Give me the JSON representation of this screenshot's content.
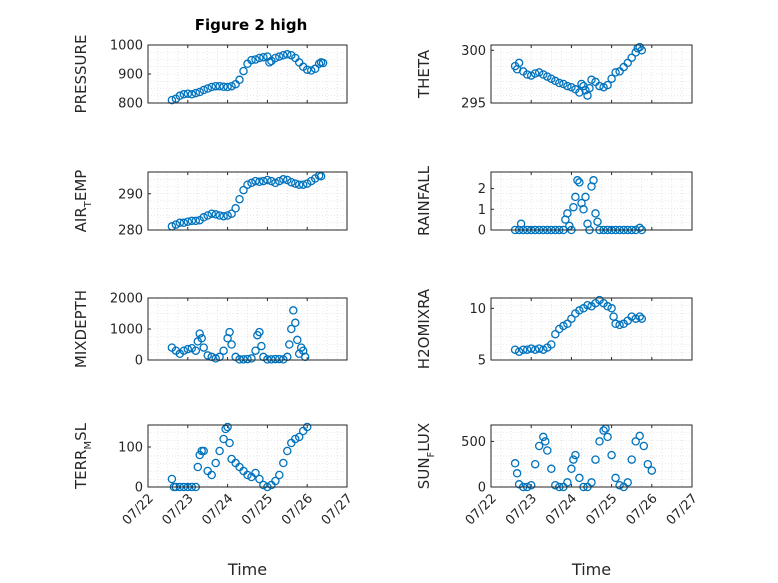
{
  "figure_title": "Figure 2 high",
  "colors": {
    "marker": "#0072BD",
    "axis": "#262626",
    "grid": "#d6d6d6"
  },
  "chart_data": [
    {
      "id": "pressure",
      "type": "scatter",
      "title": "Figure 2 high",
      "ylabel": {
        "main": "PRESSURE",
        "sub": "",
        "rest": ""
      },
      "xlabel": "",
      "xlim": [
        0,
        5
      ],
      "ylim": [
        800,
        1000
      ],
      "yticks": [
        800,
        900,
        1000
      ],
      "xticks": [],
      "grid": true,
      "points": [
        [
          0.6,
          810
        ],
        [
          0.7,
          815
        ],
        [
          0.8,
          825
        ],
        [
          0.9,
          830
        ],
        [
          1.0,
          832
        ],
        [
          1.1,
          830
        ],
        [
          1.2,
          834
        ],
        [
          1.3,
          838
        ],
        [
          1.4,
          845
        ],
        [
          1.5,
          850
        ],
        [
          1.6,
          855
        ],
        [
          1.7,
          858
        ],
        [
          1.8,
          858
        ],
        [
          1.9,
          856
        ],
        [
          2.0,
          855
        ],
        [
          2.1,
          858
        ],
        [
          2.2,
          865
        ],
        [
          2.3,
          880
        ],
        [
          2.4,
          910
        ],
        [
          2.5,
          935
        ],
        [
          2.6,
          948
        ],
        [
          2.7,
          950
        ],
        [
          2.8,
          955
        ],
        [
          2.9,
          958
        ],
        [
          3.0,
          960
        ],
        [
          3.05,
          940
        ],
        [
          3.1,
          945
        ],
        [
          3.2,
          955
        ],
        [
          3.3,
          960
        ],
        [
          3.4,
          965
        ],
        [
          3.5,
          968
        ],
        [
          3.6,
          965
        ],
        [
          3.7,
          955
        ],
        [
          3.8,
          940
        ],
        [
          3.9,
          925
        ],
        [
          4.0,
          915
        ],
        [
          4.1,
          912
        ],
        [
          4.2,
          918
        ],
        [
          4.3,
          935
        ],
        [
          4.35,
          940
        ],
        [
          4.4,
          938
        ]
      ]
    },
    {
      "id": "theta",
      "type": "scatter",
      "ylabel": {
        "main": "THETA",
        "sub": "",
        "rest": ""
      },
      "xlabel": "",
      "xlim": [
        0,
        5
      ],
      "ylim": [
        295,
        300.5
      ],
      "yticks": [
        295,
        300
      ],
      "xticks": [],
      "grid": true,
      "points": [
        [
          0.6,
          298.5
        ],
        [
          0.65,
          298.2
        ],
        [
          0.7,
          298.8
        ],
        [
          0.8,
          298.0
        ],
        [
          0.9,
          297.7
        ],
        [
          1.0,
          297.6
        ],
        [
          1.1,
          297.8
        ],
        [
          1.2,
          297.9
        ],
        [
          1.3,
          297.7
        ],
        [
          1.4,
          297.5
        ],
        [
          1.5,
          297.3
        ],
        [
          1.6,
          297.1
        ],
        [
          1.7,
          296.9
        ],
        [
          1.8,
          296.8
        ],
        [
          1.9,
          296.6
        ],
        [
          2.0,
          296.5
        ],
        [
          2.1,
          296.3
        ],
        [
          2.2,
          296.0
        ],
        [
          2.25,
          296.8
        ],
        [
          2.3,
          296.6
        ],
        [
          2.35,
          296.2
        ],
        [
          2.4,
          295.7
        ],
        [
          2.45,
          296.4
        ],
        [
          2.5,
          297.2
        ],
        [
          2.6,
          297.0
        ],
        [
          2.7,
          296.6
        ],
        [
          2.8,
          296.5
        ],
        [
          2.9,
          296.7
        ],
        [
          3.0,
          297.3
        ],
        [
          3.1,
          297.9
        ],
        [
          3.2,
          298.0
        ],
        [
          3.3,
          298.4
        ],
        [
          3.4,
          298.8
        ],
        [
          3.5,
          299.3
        ],
        [
          3.6,
          299.8
        ],
        [
          3.65,
          300.2
        ],
        [
          3.7,
          300.3
        ],
        [
          3.75,
          300.0
        ]
      ]
    },
    {
      "id": "airtemp",
      "type": "scatter",
      "ylabel": {
        "main": "AIR",
        "sub": "T",
        "rest": "EMP"
      },
      "xlabel": "",
      "xlim": [
        0,
        5
      ],
      "ylim": [
        280,
        296
      ],
      "yticks": [
        280,
        290
      ],
      "xticks": [],
      "grid": true,
      "points": [
        [
          0.6,
          281
        ],
        [
          0.7,
          281.5
        ],
        [
          0.8,
          282
        ],
        [
          0.9,
          282
        ],
        [
          1.0,
          282.3
        ],
        [
          1.1,
          282.5
        ],
        [
          1.2,
          282.5
        ],
        [
          1.3,
          282.7
        ],
        [
          1.4,
          283.5
        ],
        [
          1.5,
          284
        ],
        [
          1.6,
          284.5
        ],
        [
          1.7,
          284.3
        ],
        [
          1.8,
          284
        ],
        [
          1.9,
          283.8
        ],
        [
          2.0,
          284
        ],
        [
          2.1,
          284.5
        ],
        [
          2.2,
          286
        ],
        [
          2.3,
          288.5
        ],
        [
          2.4,
          291
        ],
        [
          2.5,
          292.5
        ],
        [
          2.6,
          293
        ],
        [
          2.7,
          293.5
        ],
        [
          2.8,
          293.3
        ],
        [
          2.9,
          293.5
        ],
        [
          3.0,
          293.8
        ],
        [
          3.1,
          293.5
        ],
        [
          3.2,
          293
        ],
        [
          3.3,
          293.5
        ],
        [
          3.4,
          294
        ],
        [
          3.5,
          293.8
        ],
        [
          3.6,
          293.2
        ],
        [
          3.7,
          292.8
        ],
        [
          3.8,
          292.5
        ],
        [
          3.9,
          292.5
        ],
        [
          4.0,
          292.8
        ],
        [
          4.1,
          293.5
        ],
        [
          4.2,
          294.2
        ],
        [
          4.3,
          295
        ],
        [
          4.35,
          294.8
        ]
      ]
    },
    {
      "id": "rainfall",
      "type": "scatter",
      "ylabel": {
        "main": "RAINFALL",
        "sub": "",
        "rest": ""
      },
      "xlabel": "",
      "xlim": [
        0,
        5
      ],
      "ylim": [
        0,
        2.8
      ],
      "yticks": [
        0,
        1,
        2
      ],
      "xticks": [],
      "grid": true,
      "points": [
        [
          0.6,
          0
        ],
        [
          0.7,
          0
        ],
        [
          0.75,
          0.3
        ],
        [
          0.8,
          0
        ],
        [
          0.9,
          0
        ],
        [
          1.0,
          0
        ],
        [
          1.1,
          0
        ],
        [
          1.2,
          0
        ],
        [
          1.3,
          0
        ],
        [
          1.4,
          0
        ],
        [
          1.5,
          0
        ],
        [
          1.6,
          0
        ],
        [
          1.7,
          0
        ],
        [
          1.8,
          0
        ],
        [
          1.85,
          0.5
        ],
        [
          1.9,
          0.8
        ],
        [
          1.95,
          0.2
        ],
        [
          2.0,
          0
        ],
        [
          2.05,
          1.1
        ],
        [
          2.1,
          1.6
        ],
        [
          2.15,
          2.4
        ],
        [
          2.2,
          2.3
        ],
        [
          2.25,
          1.3
        ],
        [
          2.3,
          1.0
        ],
        [
          2.35,
          1.6
        ],
        [
          2.4,
          0.3
        ],
        [
          2.45,
          0
        ],
        [
          2.5,
          2.1
        ],
        [
          2.55,
          2.4
        ],
        [
          2.6,
          0.8
        ],
        [
          2.65,
          0.4
        ],
        [
          2.7,
          0
        ],
        [
          2.8,
          0
        ],
        [
          2.9,
          0
        ],
        [
          3.0,
          0
        ],
        [
          3.1,
          0
        ],
        [
          3.2,
          0
        ],
        [
          3.3,
          0
        ],
        [
          3.4,
          0
        ],
        [
          3.5,
          0
        ],
        [
          3.6,
          0
        ],
        [
          3.7,
          0.1
        ],
        [
          3.75,
          0
        ]
      ]
    },
    {
      "id": "mixdepth",
      "type": "scatter",
      "ylabel": {
        "main": "MIXDEPTH",
        "sub": "",
        "rest": ""
      },
      "xlabel": "",
      "xlim": [
        0,
        5
      ],
      "ylim": [
        0,
        2000
      ],
      "yticks": [
        0,
        1000,
        2000
      ],
      "xticks": [],
      "grid": true,
      "points": [
        [
          0.6,
          400
        ],
        [
          0.7,
          300
        ],
        [
          0.8,
          200
        ],
        [
          0.9,
          300
        ],
        [
          1.0,
          350
        ],
        [
          1.1,
          380
        ],
        [
          1.2,
          300
        ],
        [
          1.25,
          600
        ],
        [
          1.3,
          850
        ],
        [
          1.35,
          700
        ],
        [
          1.4,
          400
        ],
        [
          1.5,
          150
        ],
        [
          1.6,
          100
        ],
        [
          1.7,
          50
        ],
        [
          1.8,
          100
        ],
        [
          1.9,
          300
        ],
        [
          2.0,
          700
        ],
        [
          2.05,
          900
        ],
        [
          2.1,
          500
        ],
        [
          2.2,
          100
        ],
        [
          2.3,
          20
        ],
        [
          2.4,
          20
        ],
        [
          2.5,
          30
        ],
        [
          2.6,
          50
        ],
        [
          2.7,
          300
        ],
        [
          2.75,
          800
        ],
        [
          2.8,
          900
        ],
        [
          2.85,
          450
        ],
        [
          2.9,
          100
        ],
        [
          3.0,
          20
        ],
        [
          3.1,
          20
        ],
        [
          3.2,
          30
        ],
        [
          3.3,
          30
        ],
        [
          3.4,
          20
        ],
        [
          3.5,
          100
        ],
        [
          3.55,
          500
        ],
        [
          3.6,
          1000
        ],
        [
          3.65,
          1600
        ],
        [
          3.7,
          1200
        ],
        [
          3.75,
          650
        ],
        [
          3.8,
          200
        ],
        [
          3.85,
          400
        ],
        [
          3.9,
          300
        ],
        [
          3.95,
          100
        ]
      ]
    },
    {
      "id": "h2omixra",
      "type": "scatter",
      "ylabel": {
        "main": "H2OMIXRA",
        "sub": "",
        "rest": ""
      },
      "xlabel": "",
      "xlim": [
        0,
        5
      ],
      "ylim": [
        5,
        11
      ],
      "yticks": [
        5,
        10
      ],
      "xticks": [],
      "grid": true,
      "points": [
        [
          0.6,
          6.0
        ],
        [
          0.7,
          5.8
        ],
        [
          0.8,
          6.0
        ],
        [
          0.9,
          6.0
        ],
        [
          1.0,
          6.1
        ],
        [
          1.1,
          6.0
        ],
        [
          1.2,
          6.1
        ],
        [
          1.3,
          6.0
        ],
        [
          1.4,
          6.2
        ],
        [
          1.5,
          6.5
        ],
        [
          1.6,
          7.5
        ],
        [
          1.7,
          8.0
        ],
        [
          1.8,
          8.3
        ],
        [
          1.9,
          8.5
        ],
        [
          2.0,
          9.0
        ],
        [
          2.1,
          9.5
        ],
        [
          2.2,
          9.8
        ],
        [
          2.3,
          10.0
        ],
        [
          2.4,
          10.3
        ],
        [
          2.5,
          10.2
        ],
        [
          2.6,
          10.5
        ],
        [
          2.7,
          10.8
        ],
        [
          2.8,
          10.5
        ],
        [
          2.9,
          10.2
        ],
        [
          3.0,
          10.0
        ],
        [
          3.05,
          9.2
        ],
        [
          3.1,
          8.5
        ],
        [
          3.2,
          8.4
        ],
        [
          3.3,
          8.5
        ],
        [
          3.4,
          8.8
        ],
        [
          3.5,
          9.2
        ],
        [
          3.6,
          9.0
        ],
        [
          3.7,
          9.2
        ],
        [
          3.75,
          9.0
        ]
      ]
    },
    {
      "id": "terrmsl",
      "type": "scatter",
      "ylabel": {
        "main": "TERR",
        "sub": "M",
        "rest": "SL"
      },
      "xlabel": "Time",
      "xlim": [
        0,
        5
      ],
      "ylim": [
        0,
        155
      ],
      "yticks": [
        0,
        100
      ],
      "xticks": [
        "07/22",
        "07/23",
        "07/24",
        "07/25",
        "07/26",
        "07/27"
      ],
      "grid": true,
      "points": [
        [
          0.6,
          20
        ],
        [
          0.65,
          0
        ],
        [
          0.7,
          0
        ],
        [
          0.8,
          0
        ],
        [
          0.9,
          0
        ],
        [
          1.0,
          0
        ],
        [
          1.1,
          0
        ],
        [
          1.2,
          0
        ],
        [
          1.25,
          50
        ],
        [
          1.3,
          80
        ],
        [
          1.35,
          90
        ],
        [
          1.4,
          90
        ],
        [
          1.5,
          40
        ],
        [
          1.6,
          30
        ],
        [
          1.7,
          60
        ],
        [
          1.8,
          90
        ],
        [
          1.9,
          120
        ],
        [
          1.95,
          145
        ],
        [
          2.0,
          150
        ],
        [
          2.05,
          110
        ],
        [
          2.1,
          70
        ],
        [
          2.2,
          60
        ],
        [
          2.3,
          50
        ],
        [
          2.4,
          40
        ],
        [
          2.5,
          30
        ],
        [
          2.6,
          25
        ],
        [
          2.7,
          35
        ],
        [
          2.8,
          20
        ],
        [
          2.9,
          5
        ],
        [
          3.0,
          0
        ],
        [
          3.1,
          5
        ],
        [
          3.2,
          15
        ],
        [
          3.3,
          30
        ],
        [
          3.4,
          60
        ],
        [
          3.5,
          90
        ],
        [
          3.6,
          110
        ],
        [
          3.7,
          120
        ],
        [
          3.8,
          125
        ],
        [
          3.9,
          140
        ],
        [
          4.0,
          150
        ]
      ]
    },
    {
      "id": "sunflux",
      "type": "scatter",
      "ylabel": {
        "main": "SUN",
        "sub": "F",
        "rest": "LUX"
      },
      "xlabel": "Time",
      "xlim": [
        0,
        5
      ],
      "ylim": [
        0,
        680
      ],
      "yticks": [
        0,
        500
      ],
      "xticks": [
        "07/22",
        "07/23",
        "07/24",
        "07/25",
        "07/26",
        "07/27"
      ],
      "grid": true,
      "points": [
        [
          0.6,
          260
        ],
        [
          0.65,
          150
        ],
        [
          0.7,
          30
        ],
        [
          0.8,
          0
        ],
        [
          0.9,
          0
        ],
        [
          1.0,
          20
        ],
        [
          1.1,
          250
        ],
        [
          1.2,
          450
        ],
        [
          1.3,
          550
        ],
        [
          1.35,
          500
        ],
        [
          1.4,
          400
        ],
        [
          1.5,
          200
        ],
        [
          1.6,
          20
        ],
        [
          1.7,
          0
        ],
        [
          1.8,
          0
        ],
        [
          1.9,
          50
        ],
        [
          2.0,
          200
        ],
        [
          2.05,
          300
        ],
        [
          2.1,
          350
        ],
        [
          2.2,
          100
        ],
        [
          2.3,
          0
        ],
        [
          2.4,
          0
        ],
        [
          2.5,
          50
        ],
        [
          2.6,
          300
        ],
        [
          2.7,
          500
        ],
        [
          2.8,
          620
        ],
        [
          2.85,
          640
        ],
        [
          2.9,
          550
        ],
        [
          3.0,
          350
        ],
        [
          3.1,
          100
        ],
        [
          3.2,
          20
        ],
        [
          3.3,
          0
        ],
        [
          3.4,
          50
        ],
        [
          3.5,
          300
        ],
        [
          3.6,
          500
        ],
        [
          3.7,
          560
        ],
        [
          3.8,
          450
        ],
        [
          3.9,
          250
        ],
        [
          4.0,
          180
        ]
      ]
    }
  ]
}
